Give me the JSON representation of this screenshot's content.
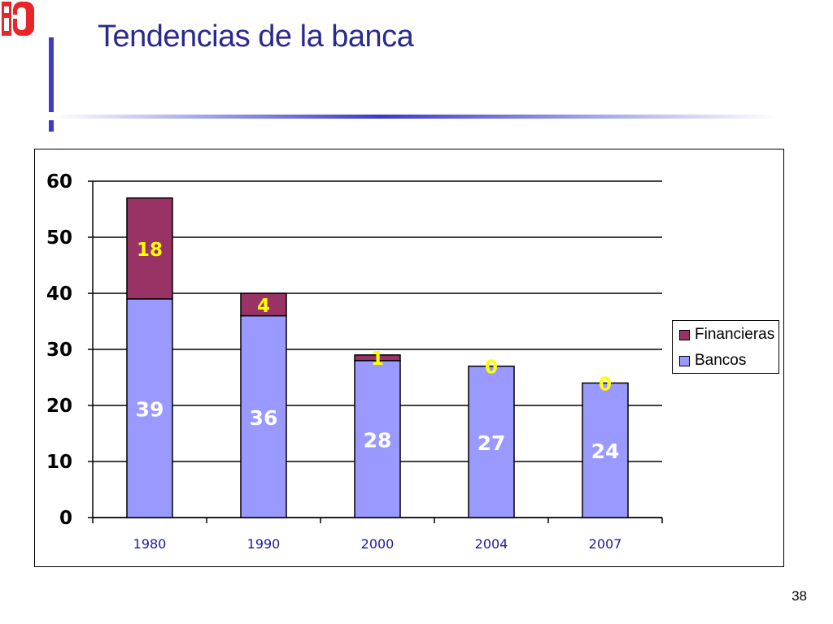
{
  "slide": {
    "title": "Tendencias de la banca",
    "page_number": "38"
  },
  "colors": {
    "title": "#2a2a8c",
    "bancos": "#9999ff",
    "financieras": "#993366",
    "data_label_top": "#ffff00",
    "data_label_bottom": "#ffffff",
    "accent_line": "#3b3bc8",
    "logo": "#e8262a"
  },
  "chart_data": {
    "type": "bar",
    "stacked": true,
    "categories": [
      "1980",
      "1990",
      "2000",
      "2004",
      "2007"
    ],
    "series": [
      {
        "name": "Bancos",
        "values": [
          39,
          36,
          28,
          27,
          24
        ]
      },
      {
        "name": "Financieras",
        "values": [
          18,
          4,
          1,
          0,
          0
        ]
      }
    ],
    "title": "",
    "xlabel": "",
    "ylabel": "",
    "ylim": [
      0,
      60
    ],
    "yticks": [
      "0",
      "10",
      "20",
      "30",
      "40",
      "50",
      "60"
    ],
    "grid": true,
    "legend_position": "right"
  }
}
